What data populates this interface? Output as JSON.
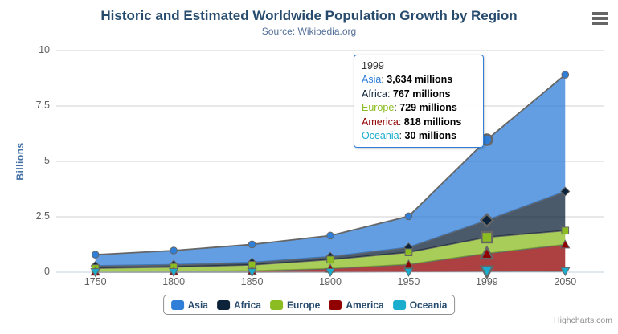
{
  "title": "Historic and Estimated Worldwide Population Growth by Region",
  "subtitle": "Source: Wikipedia.org",
  "credits": "Highcharts.com",
  "colors": {
    "background": "#ffffff",
    "title": "#274b6d",
    "subtitle": "#547099",
    "axis_title": "#4572a7",
    "tick_label": "#606060",
    "grid_line": "#d2d2d2",
    "axis_line": "#c0d0e0",
    "series_line": "#666666",
    "legend_text": "#274b6d",
    "legend_border": "#909090",
    "tooltip_border": "#2f7ed8",
    "tooltip_text": "#333333",
    "credits": "#909090",
    "menu_icon": "#666666"
  },
  "chart_data": {
    "type": "area",
    "stacking": "normal",
    "title": "Historic and Estimated Worldwide Population Growth by Region",
    "subtitle": "Source: Wikipedia.org",
    "xlabel": "",
    "ylabel": "Billions",
    "ylim": [
      0,
      10
    ],
    "yticks": [
      0,
      2.5,
      5,
      7.5,
      10
    ],
    "grid": true,
    "legend_position": "bottom",
    "units": "millions",
    "categories": [
      "1750",
      "1800",
      "1850",
      "1900",
      "1950",
      "1999",
      "2050"
    ],
    "series": [
      {
        "name": "Asia",
        "color": "#2f7ed8",
        "marker": "circle",
        "values": [
          502,
          635,
          809,
          947,
          1402,
          3634,
          5268
        ]
      },
      {
        "name": "Africa",
        "color": "#0d233a",
        "marker": "diamond",
        "values": [
          106,
          107,
          111,
          133,
          221,
          767,
          1766
        ]
      },
      {
        "name": "Europe",
        "color": "#8bbc22",
        "marker": "square",
        "values": [
          163,
          203,
          276,
          408,
          547,
          729,
          628
        ]
      },
      {
        "name": "America",
        "color": "#910000",
        "marker": "triangle",
        "values": [
          18,
          31,
          54,
          156,
          339,
          818,
          1201
        ]
      },
      {
        "name": "Oceania",
        "color": "#1aadce",
        "marker": "triangle-down",
        "values": [
          2,
          2,
          2,
          6,
          13,
          30,
          46
        ]
      }
    ]
  },
  "hover_category": "1999",
  "tooltip": {
    "header": "1999",
    "rows": [
      {
        "region": "Asia",
        "value": "3,634 millions"
      },
      {
        "region": "Africa",
        "value": "767 millions"
      },
      {
        "region": "Europe",
        "value": "729 millions"
      },
      {
        "region": "America",
        "value": "818 millions"
      },
      {
        "region": "Oceania",
        "value": "30 millions"
      }
    ]
  }
}
